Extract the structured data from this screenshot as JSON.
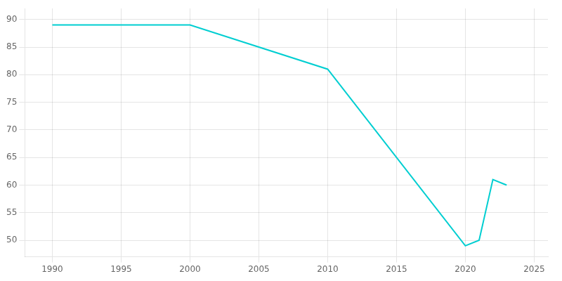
{
  "chart_data": {
    "type": "line",
    "x": [
      1990,
      2000,
      2010,
      2020,
      2021,
      2022,
      2023
    ],
    "values": [
      89,
      89,
      81,
      49,
      50,
      61,
      60
    ],
    "color": "#00CED1",
    "xlim": [
      1988,
      2026
    ],
    "xticks": [
      1990,
      1995,
      2000,
      2005,
      2010,
      2015,
      2020,
      2025
    ],
    "ylim": [
      47,
      92
    ],
    "yticks": [
      50,
      55,
      60,
      65,
      70,
      75,
      80,
      85,
      90
    ],
    "grid": true
  }
}
